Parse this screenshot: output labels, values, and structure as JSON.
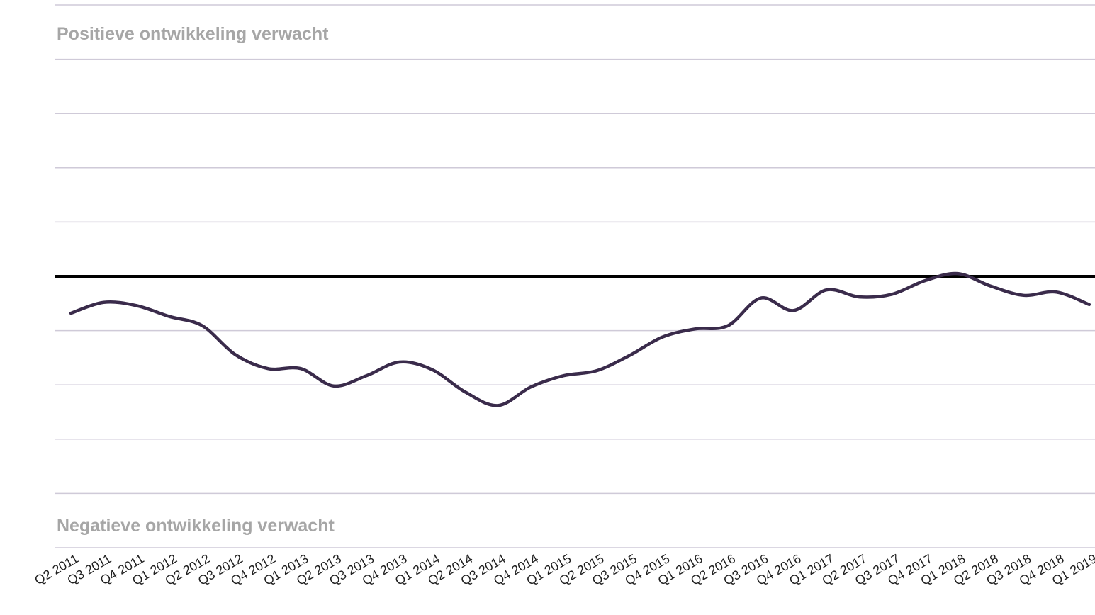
{
  "chart_data": {
    "type": "line",
    "annotations": [
      "Positieve ontwikkeling verwacht",
      "Negatieve ontwikkeling verwacht"
    ],
    "categories": [
      "Q2 2011",
      "Q3 2011",
      "Q4 2011",
      "Q1 2012",
      "Q2 2012",
      "Q3 2012",
      "Q4 2012",
      "Q1 2013",
      "Q2 2013",
      "Q3 2013",
      "Q4 2013",
      "Q1 2014",
      "Q2 2014",
      "Q3 2014",
      "Q4 2014",
      "Q1 2015",
      "Q2 2015",
      "Q3 2015",
      "Q4 2015",
      "Q1 2016",
      "Q2 2016",
      "Q3 2016",
      "Q4 2016",
      "Q1 2017",
      "Q2 2017",
      "Q3 2017",
      "Q4 2017",
      "Q1 2018",
      "Q2 2018",
      "Q3 2018",
      "Q4 2018",
      "Q1 2019"
    ],
    "series": [
      {
        "color": "#3a2b4b",
        "values": [
          -0.68,
          -0.48,
          -0.54,
          -0.74,
          -0.91,
          -1.44,
          -1.7,
          -1.7,
          -2.02,
          -1.83,
          -1.58,
          -1.72,
          -2.13,
          -2.38,
          -2.04,
          -1.83,
          -1.74,
          -1.46,
          -1.12,
          -0.97,
          -0.91,
          -0.4,
          -0.63,
          -0.25,
          -0.38,
          -0.33,
          -0.08,
          0.05,
          -0.18,
          -0.35,
          -0.29,
          -0.52
        ]
      }
    ],
    "ylim": [
      -5,
      5
    ],
    "yticks": [
      -5,
      -4,
      -3,
      -2,
      -1,
      0,
      1,
      2,
      3,
      4,
      5
    ],
    "grid": true,
    "reference_line": 0
  }
}
